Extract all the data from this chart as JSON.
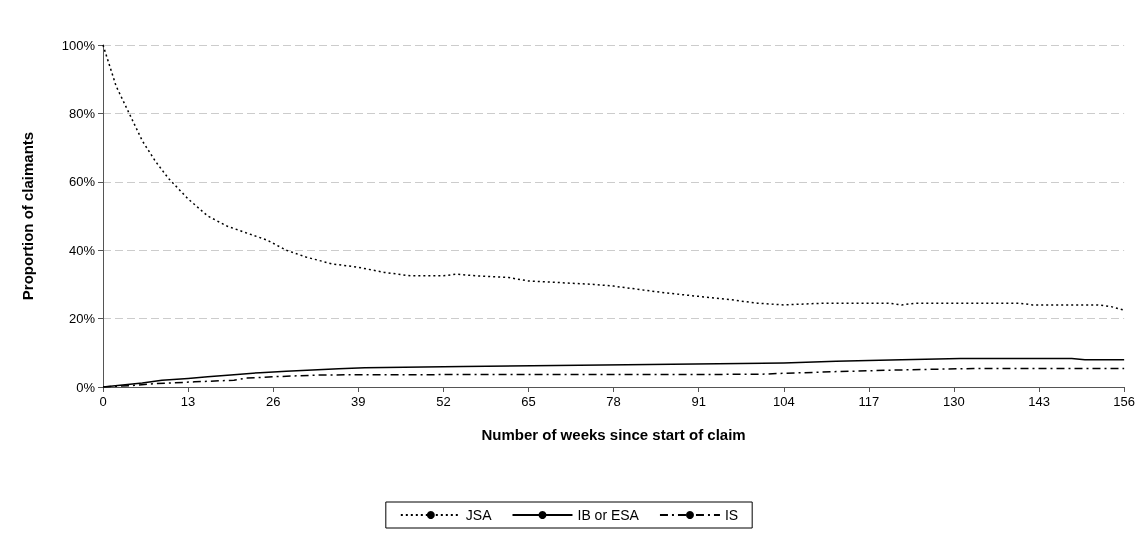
{
  "chart_data": {
    "type": "line",
    "xlabel": "Number of weeks since start of claim",
    "ylabel": "Proportion of claimants",
    "xlim": [
      0,
      156
    ],
    "xticks": [
      0,
      13,
      26,
      39,
      52,
      65,
      78,
      91,
      104,
      117,
      130,
      143,
      156
    ],
    "ylim": [
      0,
      100
    ],
    "yticks": [
      {
        "value": 0,
        "label": "0%"
      },
      {
        "value": 20,
        "label": "20%"
      },
      {
        "value": 40,
        "label": "40%"
      },
      {
        "value": 60,
        "label": "60%"
      },
      {
        "value": 80,
        "label": "80%"
      },
      {
        "value": 100,
        "label": "100%"
      }
    ],
    "grid": "y",
    "legend": "bottom",
    "marker": "none",
    "series": [
      {
        "name": "JSA",
        "color": "#000000",
        "line_style": "dotted",
        "x": [
          0,
          2,
          4,
          6,
          8,
          10,
          13,
          16,
          19,
          22,
          25,
          28,
          31,
          35,
          39,
          43,
          47,
          52,
          54,
          57,
          62,
          65,
          70,
          75,
          78,
          82,
          86,
          91,
          96,
          100,
          104,
          110,
          120,
          122,
          124,
          140,
          142,
          152,
          154,
          156
        ],
        "values": [
          100,
          88,
          80,
          72,
          66,
          61,
          55,
          50,
          47,
          45,
          43,
          40,
          38,
          36,
          35,
          33.5,
          32.5,
          32.5,
          33,
          32.5,
          32,
          31,
          30.5,
          30,
          29.5,
          28.5,
          27.5,
          26.5,
          25.5,
          24.5,
          24,
          24.5,
          24.5,
          24,
          24.5,
          24.5,
          24,
          24,
          23.5,
          22.5
        ]
      },
      {
        "name": "IB or ESA",
        "color": "#000000",
        "line_style": "solid",
        "x": [
          0,
          3,
          6,
          9,
          13,
          16,
          20,
          24,
          28,
          32,
          36,
          40,
          55,
          80,
          104,
          112,
          122,
          131,
          148,
          150,
          156
        ],
        "values": [
          0,
          0.6,
          1.2,
          2,
          2.5,
          3,
          3.6,
          4.2,
          4.6,
          5,
          5.3,
          5.6,
          6,
          6.5,
          7,
          7.5,
          8,
          8.3,
          8.3,
          8,
          8
        ]
      },
      {
        "name": "IS",
        "color": "#000000",
        "line_style": "dashed",
        "x": [
          0,
          5,
          8,
          14,
          20,
          22,
          26,
          33,
          40,
          100,
          104,
          112,
          122,
          133,
          156
        ],
        "values": [
          0,
          0.5,
          1,
          1.5,
          2,
          2.6,
          3,
          3.5,
          3.6,
          3.7,
          4,
          4.5,
          5,
          5.4,
          5.4
        ]
      }
    ]
  }
}
